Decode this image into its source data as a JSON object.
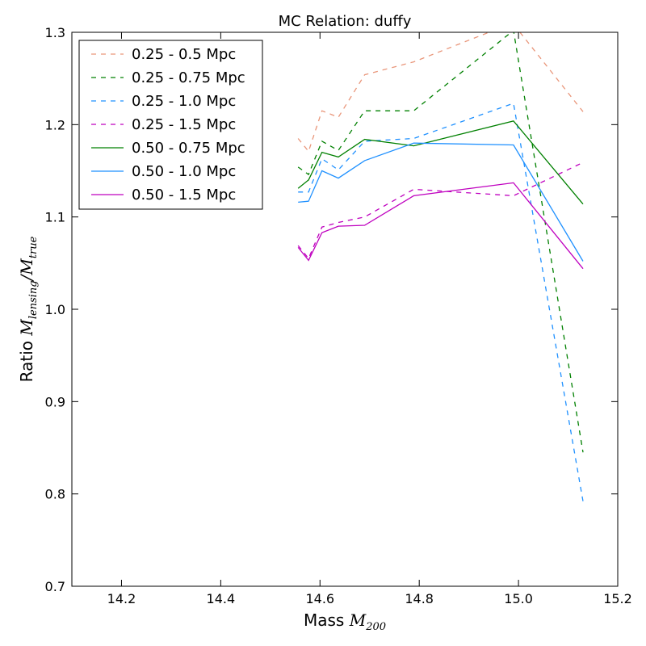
{
  "chart_data": {
    "type": "line",
    "title": "MC Relation: duffy",
    "xlabel": {
      "prefix": "Mass ",
      "symbol": "M",
      "subscript": "200"
    },
    "ylabel": {
      "prefix": "Ratio ",
      "num_symbol": "M",
      "num_sub": "lensing",
      "sep": "/",
      "den_symbol": "M",
      "den_sub": "true"
    },
    "xlim": [
      14.1,
      15.2
    ],
    "ylim": [
      0.7,
      1.3
    ],
    "xticks": [
      "14.2",
      "14.4",
      "14.6",
      "14.8",
      "15.0",
      "15.2"
    ],
    "yticks": [
      "0.7",
      "0.8",
      "0.9",
      "1.0",
      "1.1",
      "1.2",
      "1.3"
    ],
    "grid": false,
    "legend_position": "top-left",
    "series": [
      {
        "name": "0.25 - 0.5 Mpc",
        "color": "#e9967a",
        "style": "dashed",
        "x": [
          14.556,
          14.577,
          14.604,
          14.637,
          14.69,
          14.789,
          14.95,
          15.0,
          15.13
        ],
        "y": [
          1.185,
          1.171,
          1.215,
          1.208,
          1.254,
          1.268,
          1.302,
          1.302,
          1.214
        ]
      },
      {
        "name": "0.25 - 0.75 Mpc",
        "color": "#008000",
        "style": "dashed",
        "x": [
          14.556,
          14.577,
          14.604,
          14.637,
          14.69,
          14.789,
          14.99,
          15.13
        ],
        "y": [
          1.154,
          1.146,
          1.182,
          1.172,
          1.215,
          1.215,
          1.302,
          0.845
        ]
      },
      {
        "name": "0.25 - 1.0 Mpc",
        "color": "#1e90ff",
        "style": "dashed",
        "x": [
          14.556,
          14.577,
          14.604,
          14.637,
          14.69,
          14.789,
          14.99,
          15.13
        ],
        "y": [
          1.127,
          1.127,
          1.163,
          1.151,
          1.182,
          1.185,
          1.223,
          0.792
        ]
      },
      {
        "name": "0.25 - 1.5 Mpc",
        "color": "#bf00bf",
        "style": "dashed",
        "x": [
          14.556,
          14.577,
          14.604,
          14.637,
          14.69,
          14.789,
          14.99,
          15.13
        ],
        "y": [
          1.069,
          1.055,
          1.089,
          1.094,
          1.1,
          1.13,
          1.123,
          1.159
        ]
      },
      {
        "name": "0.50 - 0.75 Mpc",
        "color": "#008000",
        "style": "solid",
        "x": [
          14.556,
          14.577,
          14.604,
          14.637,
          14.69,
          14.789,
          14.99,
          15.13
        ],
        "y": [
          1.131,
          1.14,
          1.17,
          1.165,
          1.184,
          1.177,
          1.204,
          1.114
        ]
      },
      {
        "name": "0.50 - 1.0 Mpc",
        "color": "#1e90ff",
        "style": "solid",
        "x": [
          14.556,
          14.577,
          14.604,
          14.637,
          14.69,
          14.789,
          14.99,
          15.13
        ],
        "y": [
          1.116,
          1.117,
          1.15,
          1.142,
          1.161,
          1.18,
          1.178,
          1.052
        ]
      },
      {
        "name": "0.50 - 1.5 Mpc",
        "color": "#bf00bf",
        "style": "solid",
        "x": [
          14.556,
          14.577,
          14.604,
          14.637,
          14.69,
          14.789,
          14.99,
          15.13
        ],
        "y": [
          1.067,
          1.053,
          1.083,
          1.09,
          1.091,
          1.123,
          1.137,
          1.044
        ]
      }
    ]
  }
}
